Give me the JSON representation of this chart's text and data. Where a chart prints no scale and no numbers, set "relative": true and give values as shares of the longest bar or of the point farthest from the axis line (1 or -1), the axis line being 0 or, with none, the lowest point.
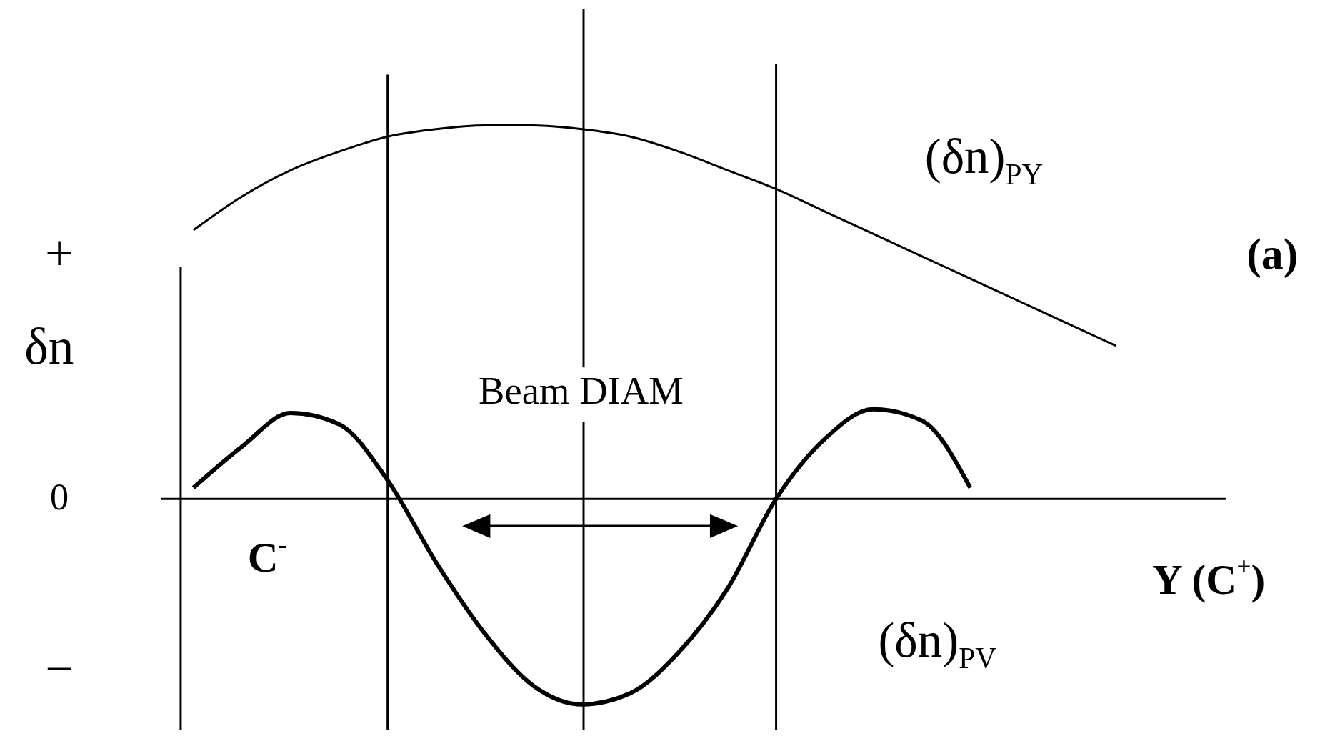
{
  "chart_data": {
    "type": "line",
    "relative": true,
    "ylabel": "δn",
    "xlabel": "Y (C$^{+}$)",
    "categories": [
      null,
      null,
      null,
      null,
      null,
      null,
      null,
      null,
      null,
      null,
      null,
      null,
      null,
      null,
      null,
      null,
      null,
      null,
      null,
      null
    ],
    "series": [
      {
        "name": "(δn)$_{PY}$",
        "color": "#000000",
        "values": [
          0.72,
          0.81,
          0.88,
          0.93,
          0.97,
          0.99,
          1.0,
          1.0,
          0.99,
          0.97,
          0.93,
          0.88,
          0.83,
          0.77,
          0.71,
          0.65,
          0.59,
          0.53,
          0.47,
          0.41
        ]
      },
      {
        "name": "(δn)$_{PV}$",
        "color": "#000000",
        "values": [
          0.03,
          0.14,
          0.23,
          0.2,
          0.05,
          -0.17,
          -0.36,
          -0.5,
          -0.55,
          -0.52,
          -0.41,
          -0.24,
          0.0,
          0.16,
          0.24,
          0.21,
          0.03,
          null,
          null,
          null
        ]
      }
    ],
    "annotations": [
      "+",
      "0",
      "−",
      "C$^{-}$",
      "Beam DIAM",
      "(a)"
    ],
    "grid": "x",
    "marker": "none",
    "line_style": "solid"
  }
}
